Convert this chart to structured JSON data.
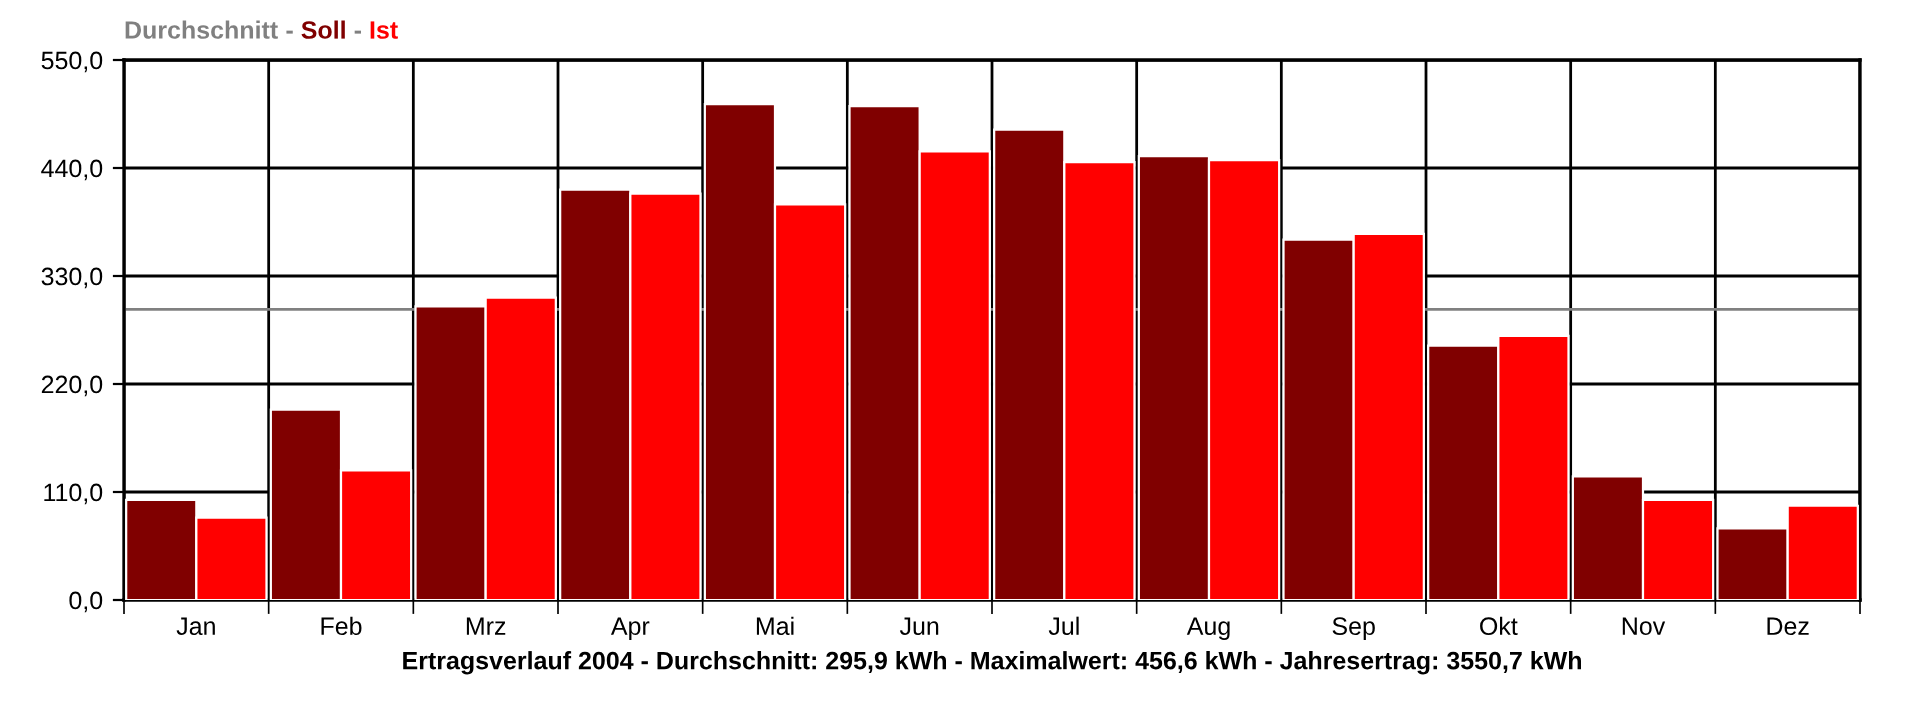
{
  "chart_data": {
    "type": "bar",
    "xlabel": "Ertragsverlauf 2004 - Durchschnitt: 295,9 kWh - Maximalwert: 456,6 kWh - Jahresertrag: 3550,7 kWh",
    "categories": [
      "Jan",
      "Feb",
      "Mrz",
      "Apr",
      "Mai",
      "Jun",
      "Jul",
      "Aug",
      "Sep",
      "Okt",
      "Nov",
      "Dez"
    ],
    "series": [
      {
        "name": "Soll",
        "color": "#800000",
        "values": [
          102,
          194,
          299,
          418,
          505,
          503,
          479,
          452,
          367,
          259,
          126,
          73
        ]
      },
      {
        "name": "Ist",
        "color": "#ff0000",
        "values": [
          84,
          132,
          308,
          414,
          403,
          457,
          446,
          448,
          373,
          269,
          102,
          96
        ]
      }
    ],
    "ylim": [
      0,
      550
    ],
    "yticks": [
      {
        "value": 0,
        "label": "0,0"
      },
      {
        "value": 110,
        "label": "110,0"
      },
      {
        "value": 220,
        "label": "220,0"
      },
      {
        "value": 330,
        "label": "330,0"
      },
      {
        "value": 440,
        "label": "440,0"
      },
      {
        "value": 550,
        "label": "550,0"
      }
    ],
    "ref_lines": [
      {
        "axis": "y",
        "value": 295.9,
        "label": "Durchschnitt",
        "color": "#808080"
      }
    ],
    "annotations": [
      "-",
      "-"
    ],
    "grid": true,
    "legend": "top left"
  }
}
